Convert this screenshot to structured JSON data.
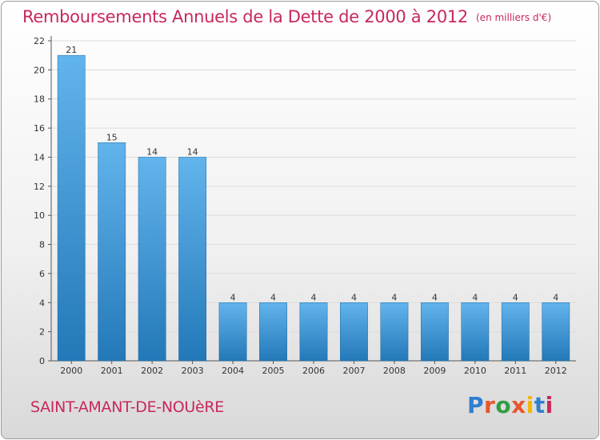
{
  "header": {
    "title": "Remboursements Annuels de la Dette de 2000 à 2012",
    "unit": "(en milliers d'€)"
  },
  "footer": {
    "commune": "SAINT-AMANT-DE-NOUèRE",
    "logo": "Proxiti"
  },
  "colors": {
    "title": "#c8285a",
    "bar_top": "#62b4ec",
    "bar_bottom": "#2378b8",
    "logo": [
      "#2f7fd0",
      "#e8562e",
      "#2f9e44",
      "#e8562e",
      "#f2b705",
      "#2f7fd0",
      "#c8285a"
    ]
  },
  "chart_data": {
    "type": "bar",
    "categories": [
      "2000",
      "2001",
      "2002",
      "2003",
      "2004",
      "2005",
      "2006",
      "2007",
      "2008",
      "2009",
      "2010",
      "2011",
      "2012"
    ],
    "values": [
      21,
      15,
      14,
      14,
      4,
      4,
      4,
      4,
      4,
      4,
      4,
      4,
      4
    ],
    "data_labels": [
      "21",
      "15",
      "14",
      "14",
      "4",
      "4",
      "4",
      "4",
      "4",
      "4",
      "4",
      "4",
      "4"
    ],
    "ylim": [
      0,
      22
    ],
    "yticks": [
      "0",
      "2",
      "4",
      "6",
      "8",
      "10",
      "12",
      "14",
      "16",
      "18",
      "20",
      "22"
    ],
    "grid": true
  }
}
